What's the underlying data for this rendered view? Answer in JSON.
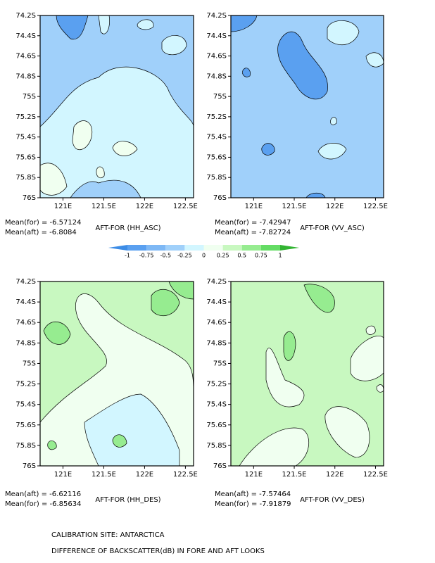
{
  "chart_data": {
    "type": "contour-map",
    "ylim": [
      -74.2,
      -76
    ],
    "xlim": [
      120.72,
      122.6
    ],
    "yticks": [
      {
        "value": -74.2,
        "label": "74.2S"
      },
      {
        "value": -74.4,
        "label": "74.4S"
      },
      {
        "value": -74.6,
        "label": "74.6S"
      },
      {
        "value": -74.8,
        "label": "74.8S"
      },
      {
        "value": -75,
        "label": "75S"
      },
      {
        "value": -75.2,
        "label": "75.2S"
      },
      {
        "value": -75.4,
        "label": "75.4S"
      },
      {
        "value": -75.6,
        "label": "75.6S"
      },
      {
        "value": -75.8,
        "label": "75.8S"
      },
      {
        "value": -76,
        "label": "76S"
      }
    ],
    "xticks": [
      {
        "value": 121,
        "label": "121E"
      },
      {
        "value": 121.5,
        "label": "121.5E"
      },
      {
        "value": 122,
        "label": "122E"
      },
      {
        "value": 122.5,
        "label": "122.5E"
      }
    ],
    "panels": [
      {
        "title": "AFT-FOR (HH_ASC)",
        "means": [
          "Mean(for) = -6.57124",
          "Mean(aft) = -6.8084"
        ]
      },
      {
        "title": "AFT-FOR (VV_ASC)",
        "means": [
          "Mean(for) = -7.42947",
          "Mean(aft) = -7.82724"
        ]
      },
      {
        "title": "AFT-FOR (HH_DES)",
        "means": [
          "Mean(aft) = -6.62116",
          "Mean(for) = -6.85634"
        ]
      },
      {
        "title": "AFT-FOR (VV_DES)",
        "means": [
          "Mean(aft) = -7.57464",
          "Mean(for) = -7.91879"
        ]
      }
    ],
    "colorbar": {
      "levels": [
        -1,
        -0.75,
        -0.5,
        -0.25,
        0,
        0.25,
        0.5,
        0.75,
        1
      ],
      "colors": [
        "#3c8ce6",
        "#5aa0f0",
        "#7eb8f5",
        "#a0d0fa",
        "#d2f6ff",
        "#f0fff0",
        "#c8f8c0",
        "#96ec90",
        "#64dc64",
        "#32b432"
      ]
    },
    "footer": [
      "CALIBRATION SITE: ANTARCTICA",
      "DIFFERENCE OF BACKSCATTER(dB) IN FORE AND AFT LOOKS"
    ]
  }
}
